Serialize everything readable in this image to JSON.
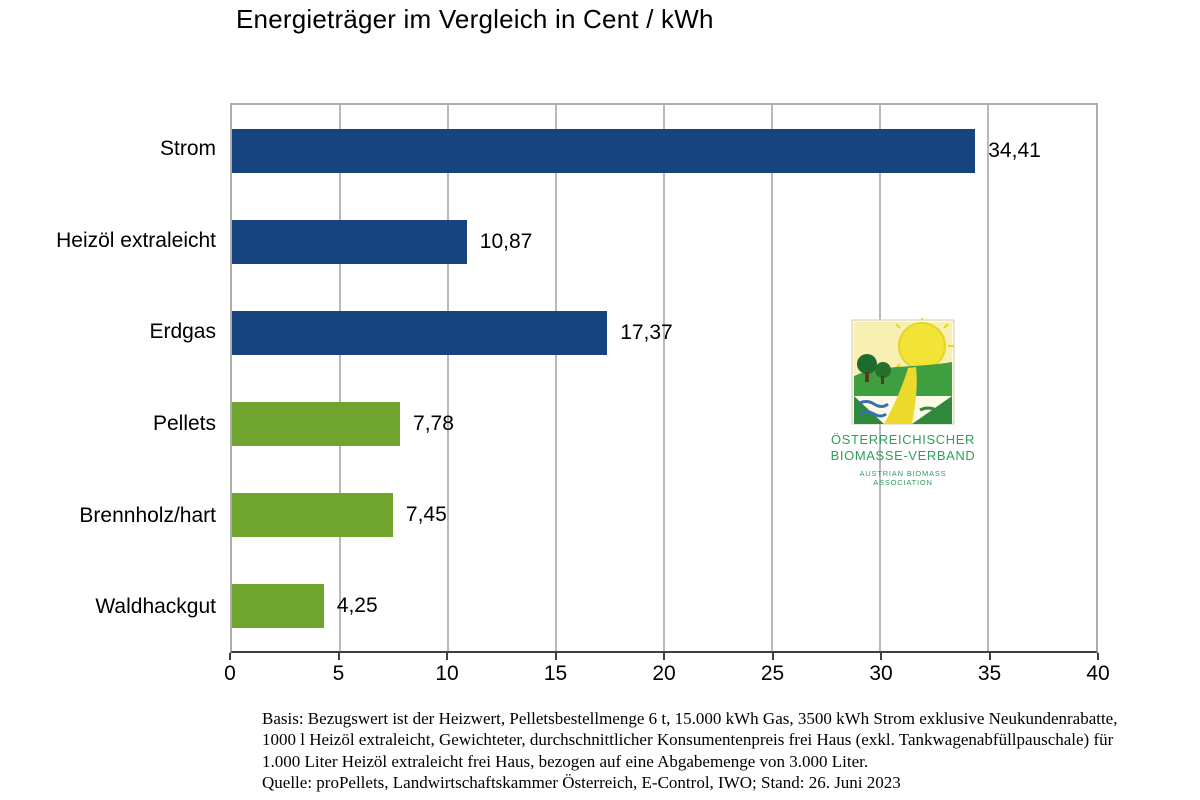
{
  "title": "Energieträger im Vergleich in Cent / kWh",
  "chart_data": {
    "type": "bar",
    "orientation": "horizontal",
    "title": "Energieträger im Vergleich in Cent / kWh",
    "categories": [
      "Strom",
      "Heizöl extraleicht",
      "Erdgas",
      "Pellets",
      "Brennholz/hart",
      "Waldhackgut"
    ],
    "values": [
      34.41,
      10.87,
      17.37,
      7.78,
      7.45,
      4.25
    ],
    "value_labels": [
      "34,41",
      "10,87",
      "17,37",
      "7,78",
      "7,45",
      "4,25"
    ],
    "bar_colors": [
      "#17437E",
      "#17437E",
      "#17437E",
      "#6FA52F",
      "#6FA52F",
      "#6FA52F"
    ],
    "xlabel": "",
    "ylabel": "",
    "xlim": [
      0,
      40
    ],
    "xticks": [
      0,
      5,
      10,
      15,
      20,
      25,
      30,
      35,
      40
    ],
    "grid": "vertical",
    "gridline_color": "#b9b9b9",
    "legend": "none"
  },
  "logo": {
    "line1": "ÖSTERREICHISCHER",
    "line2": "BIOMASSE-VERBAND",
    "line3": "AUSTRIAN BIOMASS ASSOCIATION",
    "text_color": "#2f9e5f"
  },
  "footnote": {
    "lines": [
      "Basis: Bezugswert ist der Heizwert, Pelletsbestellmenge 6 t, 15.000 kWh Gas, 3500 kWh Strom exklusive Neukundenrabatte,",
      "1000 l Heizöl extraleicht, Gewichteter, durchschnittlicher Konsumentenpreis frei Haus (exkl. Tankwagenabfüllpauschale) für",
      "1.000 Liter Heizöl extraleicht frei Haus, bezogen auf eine Abgabemenge von 3.000 Liter.",
      "Quelle: proPellets, Landwirtschaftskammer Österreich, E-Control, IWO; Stand: 26. Juni 2023"
    ]
  }
}
